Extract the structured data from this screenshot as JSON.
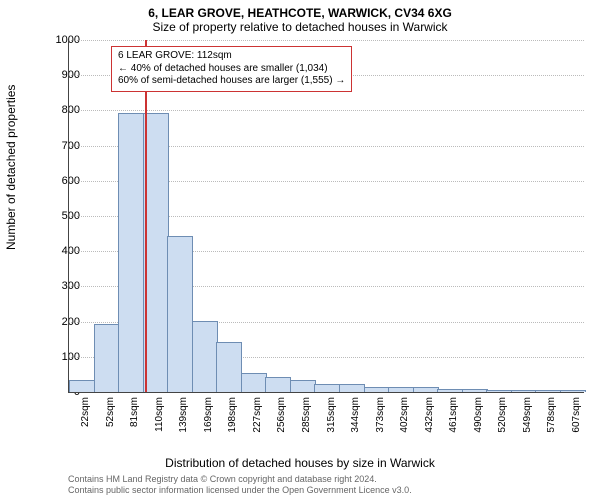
{
  "title_main": "6, LEAR GROVE, HEATHCOTE, WARWICK, CV34 6XG",
  "title_sub": "Size of property relative to detached houses in Warwick",
  "y_axis_label": "Number of detached properties",
  "x_axis_label": "Distribution of detached houses by size in Warwick",
  "attribution_line1": "Contains HM Land Registry data © Crown copyright and database right 2024.",
  "attribution_line2": "Contains public sector information licensed under the Open Government Licence v3.0.",
  "chart": {
    "type": "histogram",
    "ylim": [
      0,
      1000
    ],
    "ytick_step": 100,
    "bar_fill": "#cdddf1",
    "bar_stroke": "#6e8db3",
    "grid_color": "#bbbbbb",
    "background": "#ffffff",
    "marker_color": "#cc3333",
    "marker_position_bin_index": 3,
    "x_labels": [
      "22sqm",
      "52sqm",
      "81sqm",
      "110sqm",
      "139sqm",
      "169sqm",
      "198sqm",
      "227sqm",
      "256sqm",
      "285sqm",
      "315sqm",
      "344sqm",
      "373sqm",
      "402sqm",
      "432sqm",
      "461sqm",
      "490sqm",
      "520sqm",
      "549sqm",
      "578sqm",
      "607sqm"
    ],
    "values": [
      30,
      190,
      790,
      790,
      440,
      200,
      140,
      50,
      40,
      30,
      20,
      20,
      10,
      10,
      10,
      5,
      5,
      3,
      2,
      2,
      2
    ]
  },
  "callout": {
    "line1": "6 LEAR GROVE: 112sqm",
    "line2": "← 40% of detached houses are smaller (1,034)",
    "line3": "60% of semi-detached houses are larger (1,555) →"
  }
}
